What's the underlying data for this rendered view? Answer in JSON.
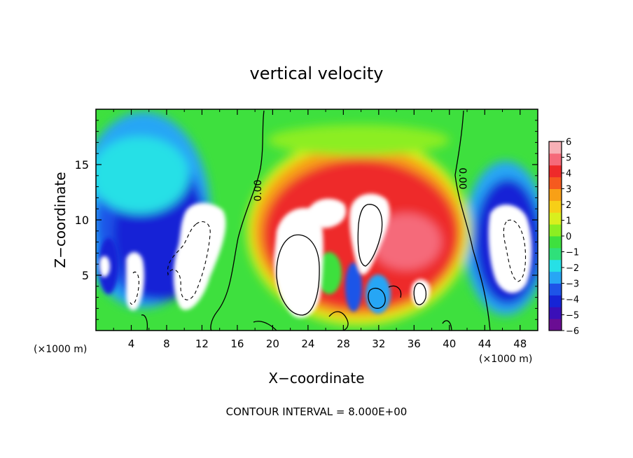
{
  "chart_data": {
    "type": "heatmap",
    "title": "vertical velocity",
    "xlabel": "X−coordinate",
    "ylabel": "Z−coordinate",
    "x_unit_left": "(×1000 m)",
    "x_unit_right": "(×1000 m)",
    "xlim": [
      0,
      50
    ],
    "ylim": [
      0,
      20
    ],
    "x_ticks": [
      4,
      8,
      12,
      16,
      20,
      24,
      28,
      32,
      36,
      40,
      44,
      48
    ],
    "x_tick_labels": [
      "4",
      "8",
      "12",
      "16",
      "20",
      "24",
      "28",
      "32",
      "36",
      "40",
      "44",
      "48"
    ],
    "y_ticks": [
      5,
      10,
      15
    ],
    "y_tick_labels": [
      "5",
      "10",
      "15"
    ],
    "colorbar": {
      "min": -6,
      "max": 6,
      "ticks": [
        6,
        5,
        4,
        3,
        2,
        1,
        0,
        -1,
        -2,
        -3,
        -4,
        -5,
        -6
      ],
      "tick_labels": [
        "6",
        "5",
        "4",
        "3",
        "2",
        "1",
        "0",
        "−1",
        "−2",
        "−3",
        "−4",
        "−5",
        "−6"
      ],
      "colors": [
        "#6a0d93",
        "#3a0fb8",
        "#1624d6",
        "#1e54e8",
        "#27a6f5",
        "#26e0e6",
        "#2fe07a",
        "#3ee03e",
        "#8cee22",
        "#d9ef1e",
        "#f7cf17",
        "#f8a016",
        "#f55a1f",
        "#ee2a2a",
        "#f56a7a",
        "#f7b0b6"
      ]
    },
    "contour_labels": [
      "0.00",
      "0.00"
    ],
    "footer": "CONTOUR INTERVAL = 8.000E+00"
  }
}
